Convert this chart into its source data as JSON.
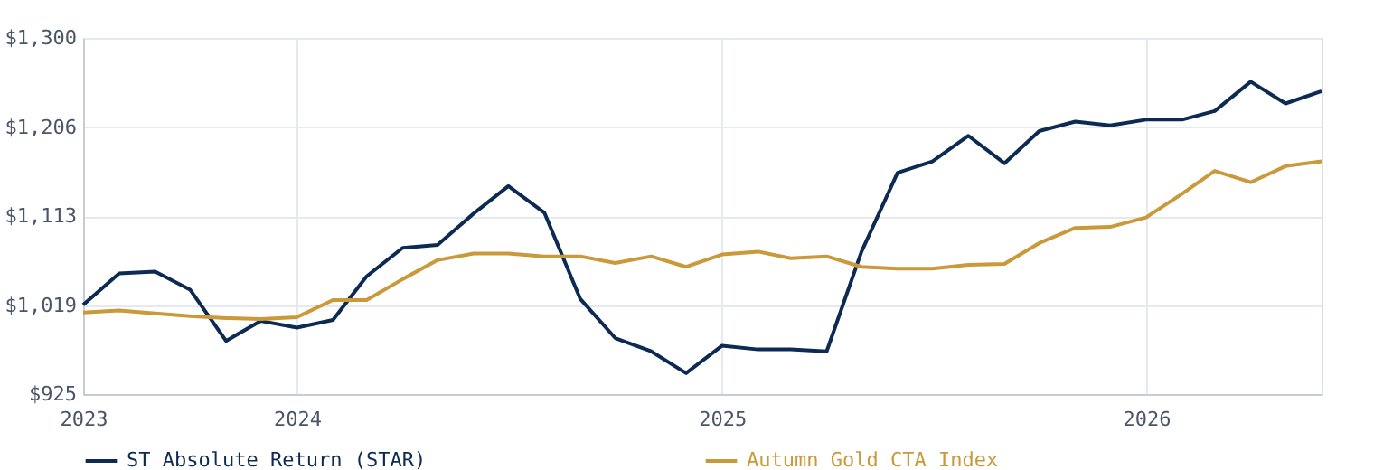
{
  "chart_data": {
    "type": "line",
    "x": [
      "2023-07",
      "2023-08",
      "2023-09",
      "2023-10",
      "2023-11",
      "2023-12",
      "2024-01",
      "2024-02",
      "2024-03",
      "2024-04",
      "2024-05",
      "2024-06",
      "2024-07",
      "2024-08",
      "2024-09",
      "2024-10",
      "2024-11",
      "2024-12",
      "2025-01",
      "2025-02",
      "2025-03",
      "2025-04",
      "2025-05",
      "2025-06",
      "2025-07",
      "2025-08",
      "2025-09",
      "2025-10",
      "2025-11",
      "2025-12",
      "2026-01",
      "2026-02",
      "2026-03",
      "2026-04",
      "2026-05",
      "2026-06"
    ],
    "series": [
      {
        "name": "ST Absolute Return (STAR)",
        "color": "#0d2a52",
        "values": [
          1019,
          1052,
          1054,
          1035,
          981,
          1002,
          995,
          1003,
          1049,
          1079,
          1082,
          1115,
          1144,
          1116,
          1025,
          984,
          970,
          947,
          976,
          972,
          972,
          970,
          1075,
          1158,
          1170,
          1197,
          1168,
          1202,
          1212,
          1208,
          1214,
          1214,
          1223,
          1254,
          1231,
          1244
        ]
      },
      {
        "name": "Autumn Gold CTA Index",
        "color": "#c9993a",
        "values": [
          1011,
          1013,
          1010,
          1007,
          1005,
          1004,
          1006,
          1024,
          1024,
          1046,
          1066,
          1073,
          1073,
          1070,
          1070,
          1063,
          1070,
          1059,
          1072,
          1075,
          1068,
          1070,
          1059,
          1057,
          1057,
          1061,
          1062,
          1084,
          1100,
          1101,
          1111,
          1136,
          1160,
          1148,
          1165,
          1170
        ]
      }
    ],
    "xlim": [
      "2023-07",
      "2026-06"
    ],
    "xticks": [
      {
        "value": "2023-07",
        "label": "2023"
      },
      {
        "value": "2024-01",
        "label": "2024"
      },
      {
        "value": "2025-01",
        "label": "2025"
      },
      {
        "value": "2026-01",
        "label": "2026"
      }
    ],
    "ylim": [
      925,
      1300
    ],
    "yticks": [
      {
        "value": 925,
        "label": "$925"
      },
      {
        "value": 1018.75,
        "label": "$1,019"
      },
      {
        "value": 1112.5,
        "label": "$1,113"
      },
      {
        "value": 1206.25,
        "label": "$1,206"
      },
      {
        "value": 1300,
        "label": "$1,300"
      }
    ],
    "grid": true,
    "legend": "bottom",
    "marker": "none",
    "line_style": "solid"
  }
}
